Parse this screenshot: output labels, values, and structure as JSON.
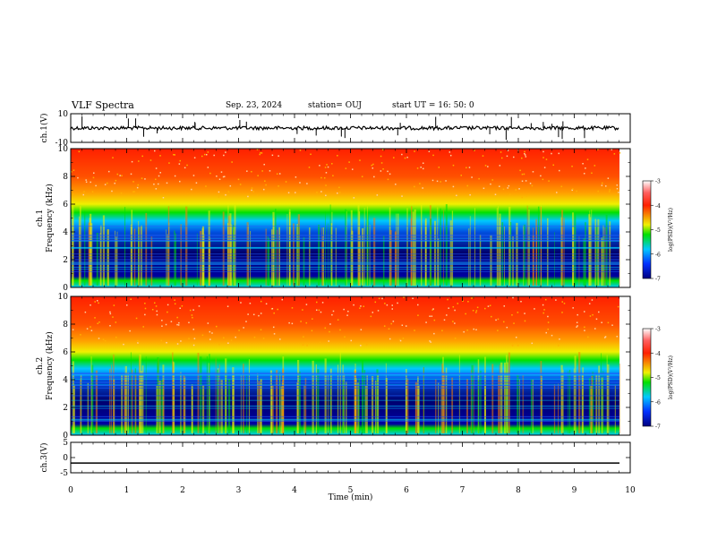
{
  "header": {
    "title": "VLF Spectra",
    "date": "Sep. 23, 2024",
    "station": "station= OUJ",
    "start": "start  UT =   16: 50: 0"
  },
  "chart_data": [
    {
      "type": "line",
      "panel": "ch1-waveform",
      "ylabel": "ch.1(V)",
      "ylim": [
        -10,
        10
      ],
      "ytick_labels": [
        "10",
        "-10"
      ],
      "xlim": [
        0,
        10
      ],
      "baseline_value": 0
    },
    {
      "type": "heatmap",
      "panel": "ch1-spectrogram",
      "ylabel": "ch.1\nFrequency (kHz)",
      "ylim": [
        0,
        10
      ],
      "ytick_labels": [
        "0",
        "2",
        "4",
        "6",
        "8",
        "10"
      ],
      "xlim": [
        0,
        9.83
      ],
      "colorbar": {
        "label": "log(PSD)(V²/Hz)",
        "range": [
          -7,
          -3
        ],
        "tick_labels": [
          "-3",
          "-4",
          "-5",
          "-6",
          "-7"
        ]
      },
      "description_bands_khz": {
        "low_noise": [
          0.5,
          4.5
        ],
        "transition": [
          4.5,
          6
        ],
        "high_power": [
          6,
          10
        ]
      }
    },
    {
      "type": "heatmap",
      "panel": "ch2-spectrogram",
      "ylabel": "ch.2\nFrequency (kHz)",
      "ylim": [
        0,
        10
      ],
      "ytick_labels": [
        "0",
        "2",
        "4",
        "6",
        "8",
        "10"
      ],
      "xlim": [
        0,
        9.83
      ],
      "colorbar": {
        "label": "log(PSD)(V²/Hz)",
        "range": [
          -7,
          -3
        ],
        "tick_labels": [
          "-3",
          "-4",
          "-5",
          "-6",
          "-7"
        ]
      }
    },
    {
      "type": "line",
      "panel": "ch3-waveform",
      "ylabel": "ch.3(V)",
      "ylim": [
        -5,
        5
      ],
      "ytick_labels": [
        "5",
        "0",
        "-5"
      ],
      "xlim": [
        0,
        10
      ],
      "baseline_value": -1.8
    }
  ],
  "xaxis": {
    "label": "Time (min)",
    "tick_labels": [
      "0",
      "1",
      "2",
      "3",
      "4",
      "5",
      "6",
      "7",
      "8",
      "9",
      "10"
    ]
  },
  "colors": {
    "low": "#00006e",
    "mid": "#00c8ff",
    "green": "#00e000",
    "yellow": "#f0f000",
    "high": "#ff2000"
  }
}
